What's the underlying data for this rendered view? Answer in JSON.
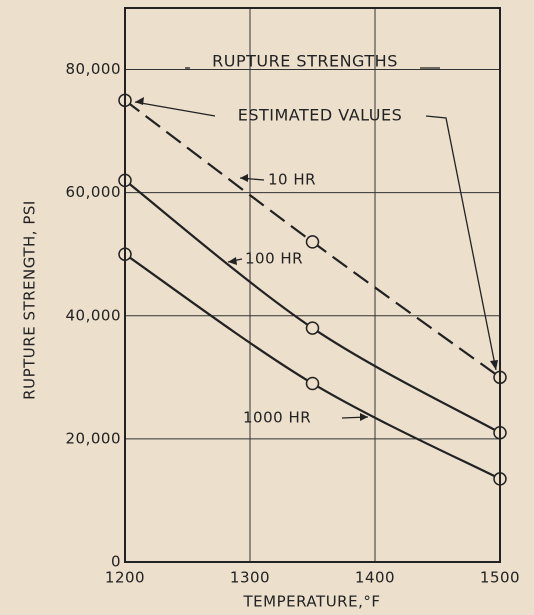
{
  "chart_data": {
    "type": "line",
    "x_label": "TEMPERATURE,°F",
    "y_label": "RUPTURE STRENGTH, PSI",
    "xlim": [
      1200,
      1500
    ],
    "xticks": [
      1200,
      1300,
      1400,
      1500
    ],
    "ylim": [
      0,
      90000
    ],
    "yticks": [
      0,
      {
        "value": 20000,
        "label": "20,000"
      },
      {
        "value": 40000,
        "label": "40,000"
      },
      {
        "value": 60000,
        "label": "60,000"
      },
      {
        "value": 80000,
        "label": "80,000"
      }
    ],
    "grid": true,
    "x": [
      1200,
      1350,
      1500
    ],
    "series": [
      {
        "name": "10 HR",
        "color": "#222222",
        "style": "dashed",
        "values": [
          75000,
          52000,
          30000
        ]
      },
      {
        "name": "100 HR",
        "color": "#222222",
        "style": "solid",
        "values": [
          62000,
          38000,
          21000
        ]
      },
      {
        "name": "1000 HR",
        "color": "#222222",
        "style": "solid",
        "values": [
          50000,
          29000,
          13500
        ]
      }
    ],
    "annotations": [
      "RUPTURE STRENGTHS",
      "ESTIMATED VALUES"
    ]
  }
}
